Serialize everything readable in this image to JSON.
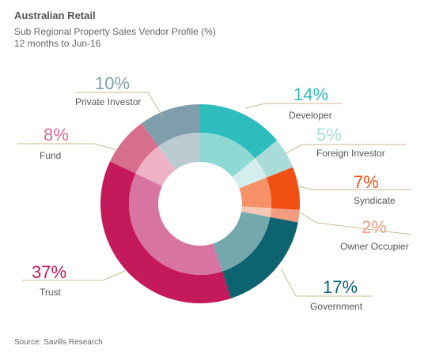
{
  "header": {
    "title": "Australian Retail",
    "subtitle": "Sub Regional Property Sales Vendor Profile (%)",
    "period": "12 months to Jun-16"
  },
  "footer": {
    "source": "Source: Savills Research"
  },
  "chart_data": {
    "type": "pie",
    "variant": "donut",
    "title": "Australian Retail",
    "subtitle": "Sub Regional Property Sales Vendor Profile (%)",
    "period": "12 months to Jun-16",
    "slices": [
      {
        "label": "Developer",
        "value": 14,
        "value_label": "14%",
        "color": "#2ebcbc",
        "inner_color": "#8fd9d5"
      },
      {
        "label": "Foreign Investor",
        "value": 5,
        "value_label": "5%",
        "color": "#a9dcd8",
        "inner_color": "#d3eeec"
      },
      {
        "label": "Syndicate",
        "value": 7,
        "value_label": "7%",
        "color": "#f05014",
        "inner_color": "#f7916a"
      },
      {
        "label": "Owner Occupier",
        "value": 2,
        "value_label": "2%",
        "color": "#f29b7e",
        "inner_color": "#f8c8b6"
      },
      {
        "label": "Government",
        "value": 17,
        "value_label": "17%",
        "color": "#0d6370",
        "inner_color": "#75a8ad"
      },
      {
        "label": "Trust",
        "value": 37,
        "value_label": "37%",
        "color": "#c4195b",
        "inner_color": "#d874a1"
      },
      {
        "label": "Fund",
        "value": 8,
        "value_label": "8%",
        "color": "#d66f8e",
        "inner_color": "#edb3c4"
      },
      {
        "label": "Private Investor",
        "value": 10,
        "value_label": "10%",
        "color": "#7f9eab",
        "inner_color": "#bccbd1"
      }
    ]
  }
}
